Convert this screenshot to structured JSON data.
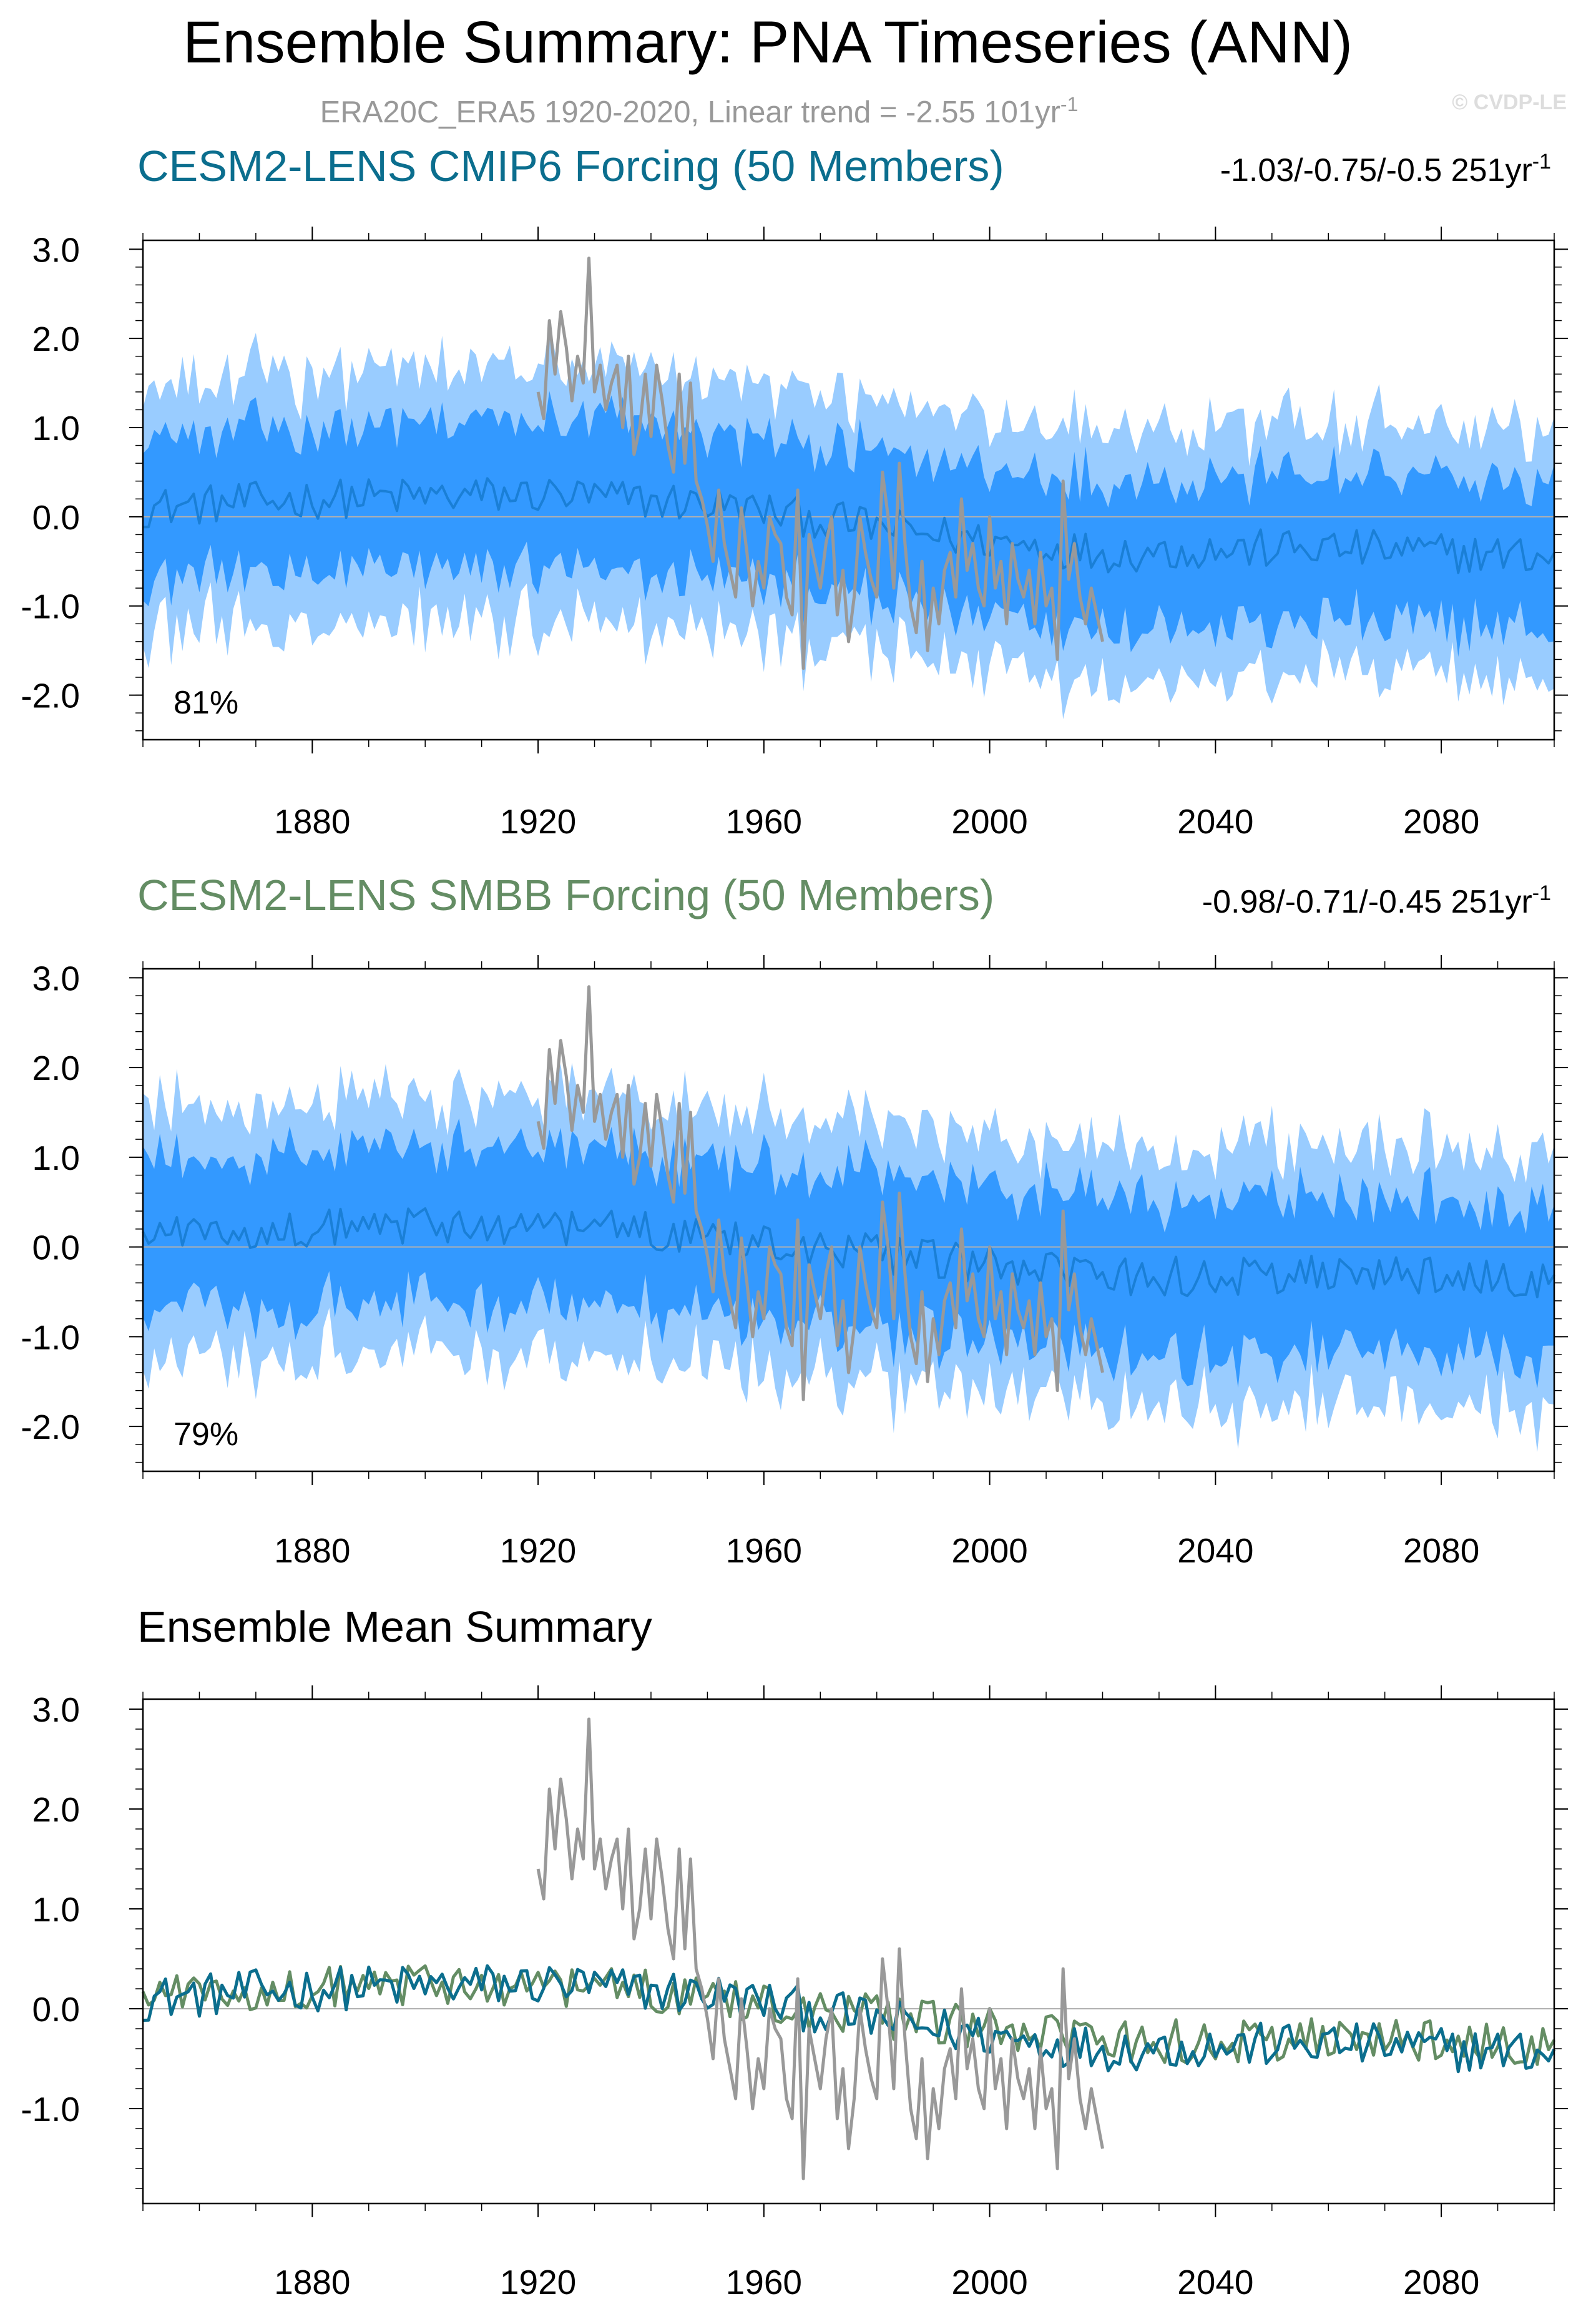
{
  "title": "Ensemble Summary: PNA Timeseries (ANN)",
  "subtitle": {
    "text": "ERA20C_ERA5 1920-2020, Linear trend = -2.55 101yr",
    "superscript": "-1"
  },
  "watermark": "© CVDP-LE",
  "colors": {
    "cmip6": "#0b6e8e",
    "smbb": "#648d64",
    "obs": "#999999",
    "inner_band": "#3399ff",
    "outer_band": "#99ccff",
    "mean_line": "#1a7fd6"
  },
  "chart_data": [
    {
      "type": "area",
      "name": "CESM2-LENS CMIP6 Forcing panel",
      "title": "CESM2-LENS CMIP6 Forcing (50 Members)",
      "trend_label": "-1.03/-0.75/-0.5 251yr",
      "trend_superscript": "-1",
      "percent_label": "81%",
      "x_range": [
        1850,
        2100
      ],
      "ylim": [
        -2.5,
        3.1
      ],
      "yticks": [
        "3.0",
        "2.0",
        "1.0",
        "0.0",
        "-1.0",
        "-2.0"
      ],
      "ytick_values": [
        3,
        2,
        1,
        0,
        -1,
        -2
      ],
      "xticks": [
        "1880",
        "1920",
        "1960",
        "2000",
        "2040",
        "2080"
      ],
      "xtick_values": [
        1880,
        1920,
        1960,
        2000,
        2040,
        2080
      ],
      "ensemble_mean_anchors": {
        "x": [
          1850,
          1880,
          1920,
          1950,
          1990,
          2020,
          2060,
          2100
        ],
        "y": [
          0.1,
          0.2,
          0.25,
          0.15,
          -0.2,
          -0.4,
          -0.35,
          -0.45
        ]
      },
      "inner_band_halfwidth": 0.8,
      "outer_band_halfwidth": 1.35,
      "observations": {
        "name": "ERA20C_ERA5",
        "x_start": 1920,
        "values": [
          1.4,
          1.1,
          2.2,
          1.6,
          2.3,
          1.9,
          1.3,
          1.8,
          1.5,
          2.9,
          1.4,
          1.7,
          1.2,
          1.5,
          1.7,
          1.0,
          1.8,
          0.7,
          1.0,
          1.6,
          0.9,
          1.7,
          1.3,
          0.8,
          0.5,
          1.6,
          0.6,
          1.5,
          0.4,
          0.2,
          -0.1,
          -0.5,
          0.3,
          -0.3,
          -0.6,
          -0.9,
          0.1,
          -0.4,
          -1.0,
          -0.5,
          -0.8,
          0.0,
          -0.2,
          -0.3,
          -0.9,
          -1.1,
          0.3,
          -1.7,
          -0.2,
          -0.5,
          -0.8,
          -0.3,
          0.0,
          -1.1,
          -0.6,
          -1.4,
          -0.9,
          0.0,
          -0.4,
          -0.7,
          -0.9,
          0.5,
          0.0,
          -0.8,
          0.6,
          -0.3,
          -1.0,
          -1.3,
          -0.5,
          -1.5,
          -0.8,
          -1.2,
          -0.6,
          -0.4,
          -0.9,
          0.2,
          -0.6,
          -0.3,
          -0.8,
          -1.0,
          0.0,
          -0.8,
          -0.5,
          -1.2,
          -0.3,
          -0.7,
          -0.9,
          -0.6,
          -1.2,
          -0.4,
          -1.0,
          -0.8,
          -1.6,
          0.4,
          -0.7,
          -0.3,
          -0.9,
          -1.2,
          -0.8,
          -1.1,
          -1.4
        ]
      }
    },
    {
      "type": "area",
      "name": "CESM2-LENS SMBB Forcing panel",
      "title": "CESM2-LENS SMBB Forcing (50 Members)",
      "trend_label": "-0.98/-0.71/-0.45 251yr",
      "trend_superscript": "-1",
      "percent_label": "79%",
      "x_range": [
        1850,
        2100
      ],
      "ylim": [
        -2.5,
        3.1
      ],
      "yticks": [
        "3.0",
        "2.0",
        "1.0",
        "0.0",
        "-1.0",
        "-2.0"
      ],
      "ytick_values": [
        3,
        2,
        1,
        0,
        -1,
        -2
      ],
      "xticks": [
        "1880",
        "1920",
        "1960",
        "2000",
        "2040",
        "2080"
      ],
      "xtick_values": [
        1880,
        1920,
        1960,
        2000,
        2040,
        2080
      ],
      "ensemble_mean_anchors": {
        "x": [
          1850,
          1880,
          1920,
          1950,
          1990,
          2020,
          2060,
          2100
        ],
        "y": [
          0.15,
          0.2,
          0.25,
          0.15,
          -0.15,
          -0.35,
          -0.3,
          -0.4
        ]
      },
      "inner_band_halfwidth": 0.85,
      "outer_band_halfwidth": 1.4
    },
    {
      "type": "line",
      "name": "Ensemble Mean Summary panel",
      "title": "Ensemble Mean Summary",
      "x_range": [
        1850,
        2100
      ],
      "ylim": [
        -1.95,
        3.1
      ],
      "yticks": [
        "3.0",
        "2.0",
        "1.0",
        "0.0",
        "-1.0"
      ],
      "ytick_values": [
        3,
        2,
        1,
        0,
        -1
      ],
      "xticks": [
        "1880",
        "1920",
        "1960",
        "2000",
        "2040",
        "2080"
      ],
      "xtick_values": [
        1880,
        1920,
        1960,
        2000,
        2040,
        2080
      ],
      "series": [
        {
          "name": "CESM2-LENS CMIP6 Forcing ensemble mean",
          "color_key": "cmip6"
        },
        {
          "name": "CESM2-LENS SMBB Forcing ensemble mean",
          "color_key": "smbb"
        },
        {
          "name": "ERA20C_ERA5",
          "color_key": "obs"
        }
      ]
    }
  ]
}
